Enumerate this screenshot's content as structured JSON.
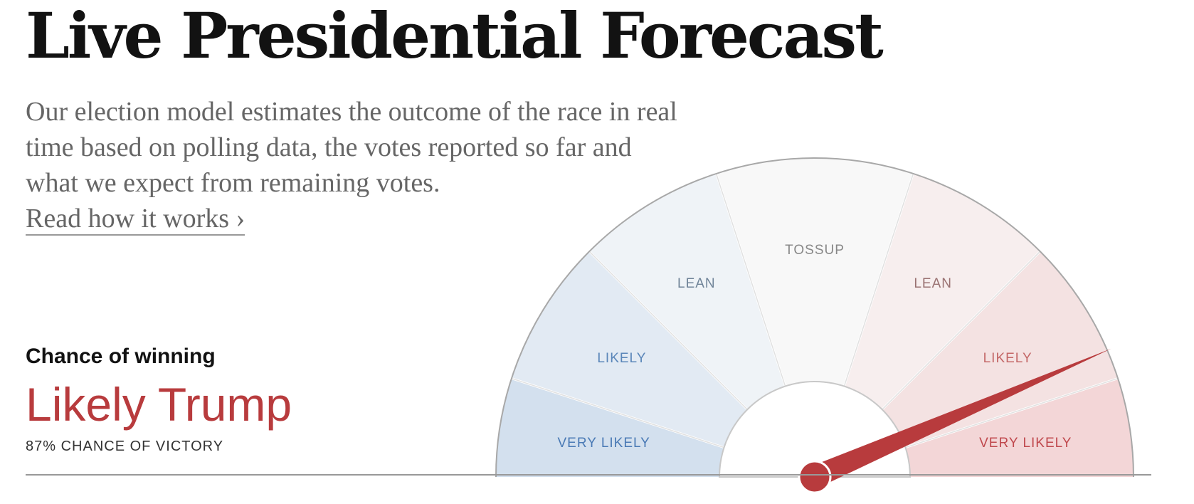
{
  "header": {
    "title": "Live Presidential Forecast",
    "description": "Our election model estimates the outcome of the race in real time based on polling data, the votes reported so far and what we expect from remaining votes.",
    "read_more": "Read how it works ›"
  },
  "summary": {
    "chance_label": "Chance of winning",
    "leader": "Likely Trump",
    "victory_text": "87% CHANCE OF VICTORY",
    "leader_color": "#b83b3d"
  },
  "chart_data": {
    "type": "gauge",
    "value": 87,
    "unit": "percent",
    "range": [
      0,
      100
    ],
    "direction": "left = Democrat, right = Republican",
    "needle_color": "#b83b3d",
    "sectors": [
      {
        "label": "VERY LIKELY",
        "party": "Democrat",
        "from": 0,
        "to": 10,
        "color": "#d3e0ee",
        "text_color": "#4a7ab5"
      },
      {
        "label": "LIKELY",
        "party": "Democrat",
        "from": 10,
        "to": 25,
        "color": "#e2eaf3",
        "text_color": "#5a86b9"
      },
      {
        "label": "LEAN",
        "party": "Democrat",
        "from": 25,
        "to": 40,
        "color": "#eff3f7",
        "text_color": "#6f8398"
      },
      {
        "label": "TOSSUP",
        "party": "None",
        "from": 40,
        "to": 60,
        "color": "#f8f8f8",
        "text_color": "#888888"
      },
      {
        "label": "LEAN",
        "party": "Republican",
        "from": 60,
        "to": 75,
        "color": "#f7eeee",
        "text_color": "#9a7272"
      },
      {
        "label": "LIKELY",
        "party": "Republican",
        "from": 75,
        "to": 90,
        "color": "#f4e2e2",
        "text_color": "#c46868"
      },
      {
        "label": "VERY LIKELY",
        "party": "Republican",
        "from": 90,
        "to": 100,
        "color": "#f3d6d7",
        "text_color": "#c0494e"
      }
    ]
  }
}
